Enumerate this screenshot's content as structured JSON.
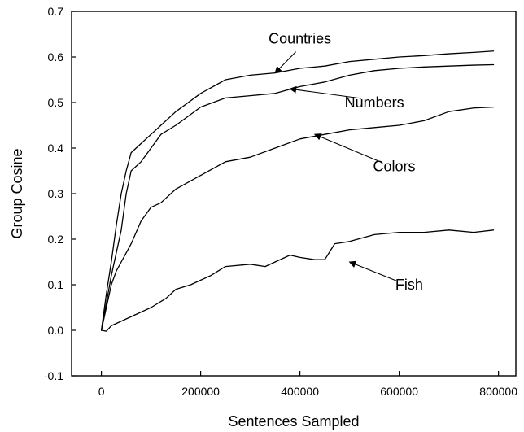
{
  "chart_data": {
    "type": "line",
    "title": "",
    "xlabel": "Sentences Sampled",
    "ylabel": "Group Cosine",
    "xlim": [
      -60000,
      835000
    ],
    "ylim": [
      -0.1,
      0.7
    ],
    "xticks": [
      0,
      200000,
      400000,
      600000,
      800000
    ],
    "yticks": [
      -0.1,
      0.0,
      0.1,
      0.2,
      0.3,
      0.4,
      0.5,
      0.6,
      0.7
    ],
    "xtick_labels": [
      "0",
      "200000",
      "400000",
      "600000",
      "800000"
    ],
    "ytick_labels": [
      "-0.1",
      "0.0",
      "0.1",
      "0.2",
      "0.3",
      "0.4",
      "0.5",
      "0.6",
      "0.7"
    ],
    "grid": false,
    "legend": "none",
    "line_color": "#000000",
    "series": [
      {
        "name": "Countries",
        "x": [
          0,
          10000,
          20000,
          30000,
          40000,
          50000,
          60000,
          80000,
          100000,
          120000,
          150000,
          200000,
          250000,
          300000,
          350000,
          400000,
          450000,
          500000,
          550000,
          600000,
          650000,
          700000,
          750000,
          790000
        ],
        "y": [
          0.0,
          0.08,
          0.15,
          0.23,
          0.3,
          0.35,
          0.39,
          0.41,
          0.43,
          0.45,
          0.48,
          0.52,
          0.55,
          0.56,
          0.565,
          0.575,
          0.58,
          0.59,
          0.595,
          0.6,
          0.603,
          0.607,
          0.61,
          0.613
        ]
      },
      {
        "name": "Numbers",
        "x": [
          0,
          10000,
          20000,
          30000,
          40000,
          50000,
          60000,
          80000,
          100000,
          120000,
          150000,
          200000,
          250000,
          300000,
          350000,
          400000,
          450000,
          500000,
          550000,
          600000,
          650000,
          700000,
          750000,
          790000
        ],
        "y": [
          0.0,
          0.06,
          0.12,
          0.17,
          0.22,
          0.3,
          0.35,
          0.37,
          0.4,
          0.43,
          0.45,
          0.49,
          0.51,
          0.515,
          0.52,
          0.535,
          0.545,
          0.56,
          0.57,
          0.575,
          0.578,
          0.58,
          0.582,
          0.583
        ]
      },
      {
        "name": "Colors",
        "x": [
          0,
          10000,
          20000,
          30000,
          40000,
          50000,
          60000,
          80000,
          100000,
          120000,
          150000,
          200000,
          250000,
          300000,
          350000,
          400000,
          450000,
          500000,
          550000,
          600000,
          650000,
          700000,
          750000,
          790000
        ],
        "y": [
          0.0,
          0.05,
          0.1,
          0.13,
          0.15,
          0.17,
          0.19,
          0.24,
          0.27,
          0.28,
          0.31,
          0.34,
          0.37,
          0.38,
          0.4,
          0.42,
          0.43,
          0.44,
          0.445,
          0.45,
          0.46,
          0.48,
          0.488,
          0.49
        ]
      },
      {
        "name": "Fish",
        "x": [
          0,
          10000,
          20000,
          30000,
          50000,
          70000,
          100000,
          130000,
          150000,
          180000,
          200000,
          220000,
          250000,
          300000,
          330000,
          350000,
          380000,
          400000,
          430000,
          450000,
          470000,
          500000,
          550000,
          600000,
          650000,
          700000,
          750000,
          790000
        ],
        "y": [
          0.0,
          -0.002,
          0.01,
          0.015,
          0.025,
          0.035,
          0.05,
          0.07,
          0.09,
          0.1,
          0.11,
          0.12,
          0.14,
          0.145,
          0.14,
          0.15,
          0.165,
          0.16,
          0.155,
          0.155,
          0.19,
          0.195,
          0.21,
          0.215,
          0.215,
          0.22,
          0.215,
          0.22
        ]
      }
    ],
    "annotations": [
      {
        "text": "Countries",
        "label_x": 400000,
        "label_y": 0.64,
        "arrow_x": 350000,
        "arrow_y": 0.565
      },
      {
        "text": "Numbers",
        "label_x": 550000,
        "label_y": 0.5,
        "arrow_x": 380000,
        "arrow_y": 0.53
      },
      {
        "text": "Colors",
        "label_x": 590000,
        "label_y": 0.36,
        "arrow_x": 430000,
        "arrow_y": 0.43
      },
      {
        "text": "Fish",
        "label_x": 620000,
        "label_y": 0.1,
        "arrow_x": 500000,
        "arrow_y": 0.15
      }
    ]
  }
}
